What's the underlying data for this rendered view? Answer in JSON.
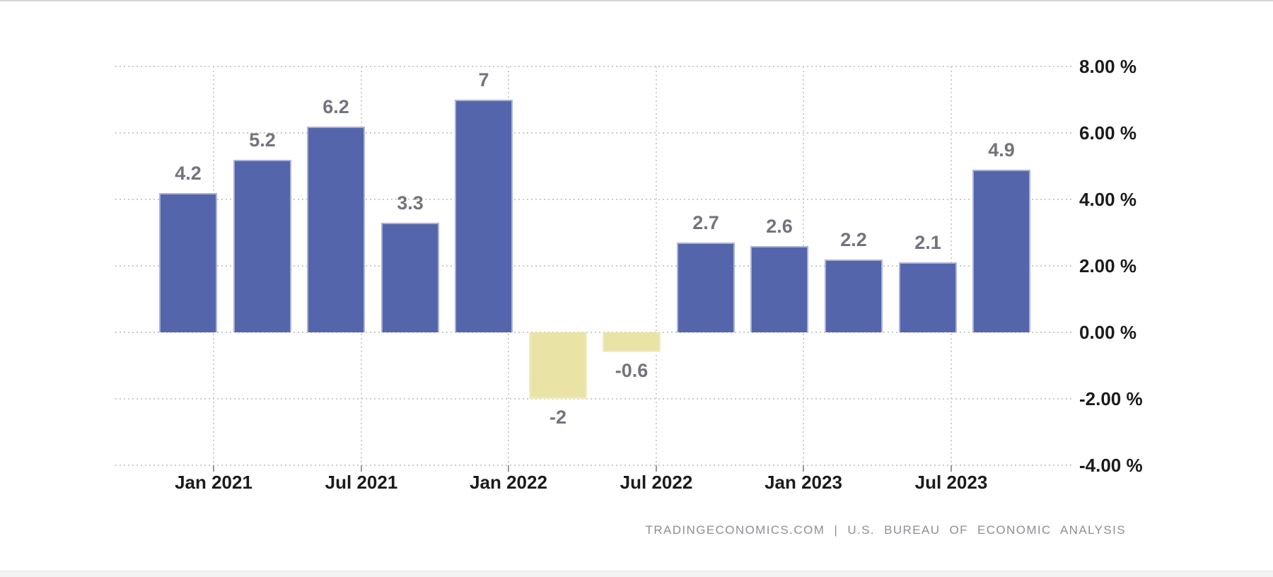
{
  "chart_data": {
    "type": "bar",
    "title": "",
    "xlabel": "",
    "ylabel": "",
    "values": [
      4.2,
      5.2,
      6.2,
      3.3,
      7,
      -2,
      -0.6,
      2.7,
      2.6,
      2.2,
      2.1,
      4.9
    ],
    "bar_labels": [
      "4.2",
      "5.2",
      "6.2",
      "3.3",
      "7",
      "-2",
      "-0.6",
      "2.7",
      "2.6",
      "2.2",
      "2.1",
      "4.9"
    ],
    "x_tick_labels": [
      "Jan 2021",
      "Jul 2021",
      "Jan 2022",
      "Jul 2022",
      "Jan 2023",
      "Jul 2023"
    ],
    "y_tick_labels": [
      "8.00 %",
      "6.00 %",
      "4.00 %",
      "2.00 %",
      "0.00 %",
      "-2.00 %",
      "-4.00 %"
    ],
    "y_tick_values": [
      8,
      6,
      4,
      2,
      0,
      -2,
      -4
    ],
    "ylim": [
      -4,
      8
    ],
    "y_step": 2,
    "grid": "dotted",
    "legend": "none",
    "colors": {
      "positive_bar": "#5565AB",
      "positive_bar_edge": "#AAB3D7",
      "negative_bar": "#E9E3A6",
      "negative_bar_edge": "#F0ECC6",
      "grid_line": "#CBCBCB",
      "axis_text": "#1B1B1B",
      "bar_label_text": "#73737E",
      "attribution_text": "#8E8E96"
    },
    "attribution": "TRADINGECONOMICS.COM | U.S. BUREAU OF ECONOMIC ANALYSIS"
  }
}
